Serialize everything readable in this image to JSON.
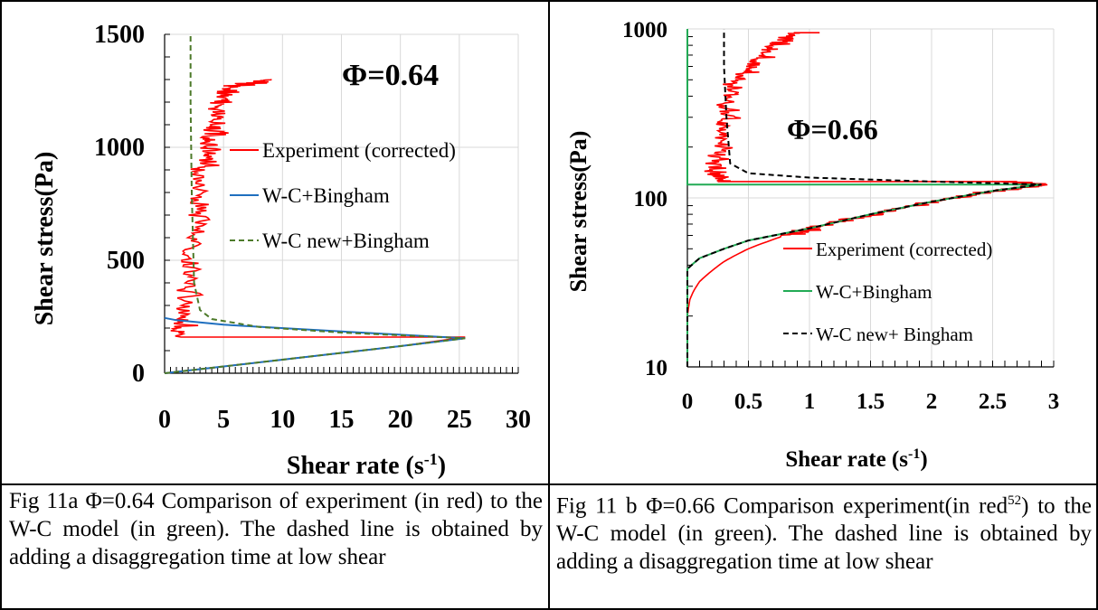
{
  "chart_data": [
    {
      "type": "line",
      "title": "Φ=0.64",
      "xlabel": "Shear rate (s-1)",
      "xlabel_main": "Shear rate (s",
      "xlabel_sup": "-1",
      "xlabel_close": ")",
      "ylabel": "Shear stress(Pa)",
      "xlim": [
        0,
        30
      ],
      "ylim": [
        0,
        1500
      ],
      "yscale": "linear",
      "xticks": [
        "0",
        "5",
        "10",
        "15",
        "20",
        "25",
        "30"
      ],
      "yticks": [
        "0",
        "500",
        "1000",
        "1500"
      ],
      "grid": true,
      "legend_position": "center-right",
      "series": [
        {
          "name": "Experiment (corrected)",
          "color": "#ff0000",
          "style": "solid-noisy",
          "x": [
            0.0,
            5.0,
            10.0,
            15.0,
            20.0,
            25.5,
            1.0,
            1.5,
            2.0,
            2.5,
            3.0,
            3.5,
            4.0,
            4.5,
            5.5,
            9.0
          ],
          "y": [
            0,
            30,
            60,
            90,
            120,
            160,
            160,
            300,
            500,
            700,
            900,
            1000,
            1100,
            1200,
            1270,
            1300
          ]
        },
        {
          "name": "W-C+Bingham",
          "color": "#1f6fbf",
          "style": "solid",
          "x": [
            0.0,
            5.0,
            10.0,
            15.0,
            20.0,
            25.5,
            15.0,
            5.0,
            1.0,
            0.0
          ],
          "y": [
            0,
            30,
            60,
            90,
            120,
            155,
            185,
            215,
            235,
            245
          ]
        },
        {
          "name": "W-C new+Bingham",
          "color": "#4d7a2a",
          "style": "dashed",
          "x": [
            0.0,
            5.0,
            10.0,
            15.0,
            20.0,
            25.5,
            15.0,
            8.0,
            4.0,
            3.0,
            2.5,
            2.3,
            2.2,
            2.2
          ],
          "y": [
            0,
            30,
            60,
            90,
            120,
            155,
            180,
            205,
            240,
            280,
            400,
            800,
            1200,
            1500
          ]
        }
      ]
    },
    {
      "type": "line",
      "title": "Φ=0.66",
      "xlabel": "Shear rate (s-1)",
      "xlabel_main": "Shear rate (s",
      "xlabel_sup": "-1",
      "xlabel_close": ")",
      "ylabel": "Shear stress(Pa)",
      "xlim": [
        0,
        3
      ],
      "ylim": [
        10,
        1000
      ],
      "yscale": "log",
      "xticks": [
        "0",
        "0.5",
        "1",
        "1.5",
        "2",
        "2.5",
        "3"
      ],
      "yticks": [
        "10",
        "100",
        "1000"
      ],
      "grid": true,
      "legend_position": "center-right",
      "series": [
        {
          "name": "Experiment (corrected)",
          "color": "#ff0000",
          "style": "solid-noisy",
          "x": [
            0.0,
            0.02,
            0.05,
            0.1,
            0.2,
            0.3,
            0.5,
            0.8,
            1.0,
            1.5,
            2.0,
            2.5,
            2.9,
            2.6,
            0.3,
            0.2,
            0.25,
            0.3,
            0.35,
            0.5,
            0.7,
            0.9,
            1.0
          ],
          "y": [
            20,
            25,
            28,
            32,
            37,
            42,
            50,
            60,
            66,
            80,
            95,
            110,
            120,
            125,
            125,
            140,
            200,
            300,
            450,
            600,
            800,
            950,
            950
          ]
        },
        {
          "name": "W-C+Bingham",
          "color": "#22aa55",
          "style": "solid",
          "x": [
            0.0,
            0.0,
            0.05,
            0.1,
            0.3,
            0.5,
            1.0,
            1.5,
            2.0,
            2.5,
            2.9,
            2.0,
            1.0,
            0.0,
            0.0
          ],
          "y": [
            10,
            38,
            41,
            44,
            50,
            56,
            66,
            80,
            95,
            110,
            120,
            120,
            120,
            120,
            1000
          ]
        },
        {
          "name": "W-C new+ Bingham",
          "color": "#000000",
          "style": "dashed",
          "x": [
            0.0,
            0.0,
            0.05,
            0.1,
            0.3,
            0.5,
            1.0,
            1.5,
            2.0,
            2.5,
            2.9,
            2.0,
            1.0,
            0.5,
            0.35,
            0.32,
            0.3,
            0.3
          ],
          "y": [
            10,
            38,
            41,
            44,
            50,
            56,
            66,
            80,
            95,
            110,
            120,
            125,
            132,
            140,
            160,
            300,
            600,
            1000
          ]
        }
      ]
    }
  ],
  "captions": {
    "left": "Fig 11a  Φ=0.64 Comparison of experiment (in red) to the W-C model (in green). The dashed line is obtained by adding a disaggregation time at low shear",
    "right_before_sup": "Fig 11 b  Φ=0.66 Comparison experiment(in red",
    "right_sup": "52",
    "right_after_sup": ") to the W-C model (in green). The dashed line is obtained by adding a disaggregation time at low shear"
  }
}
